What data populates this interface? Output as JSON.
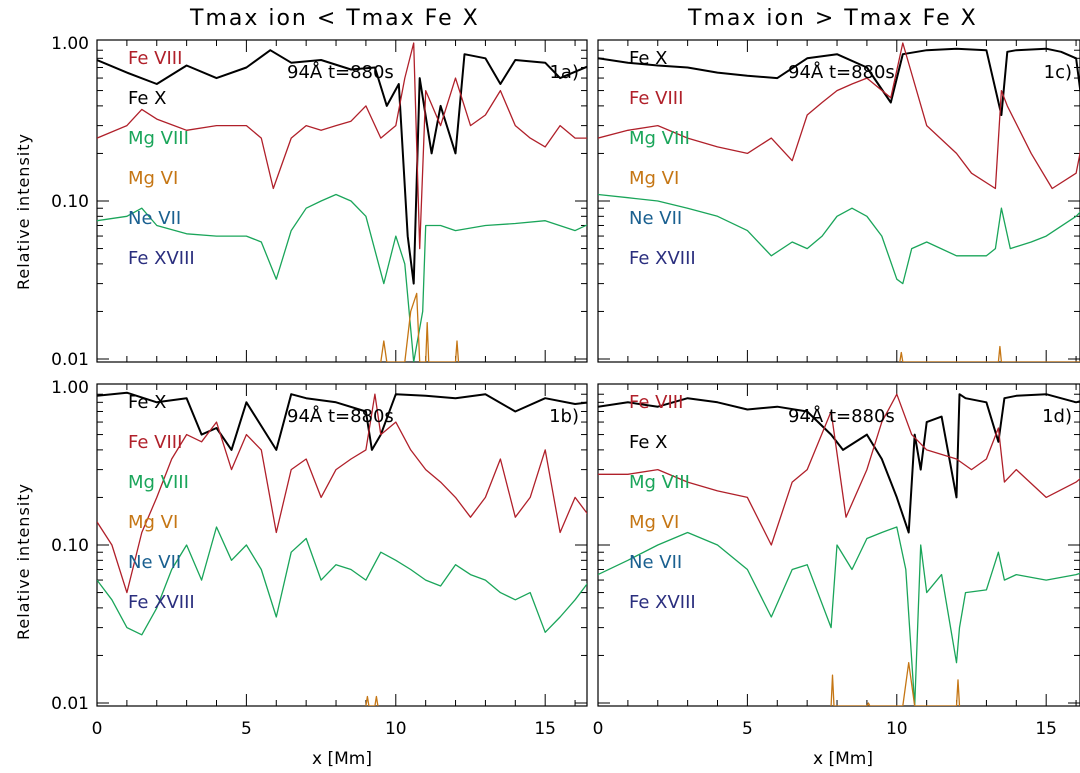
{
  "colors": {
    "Fe X": "#000000",
    "Fe VIII": "#b0202a",
    "Mg VIII": "#1aa55a",
    "Mg VI": "#c57614",
    "Ne VII": "#1a6090",
    "Fe XVIII": "#2a2e7e"
  },
  "column_titles": [
    "Tmax ion < Tmax Fe X",
    "Tmax ion > Tmax Fe X"
  ],
  "ylabel": "Relative intensity",
  "xlabel": "x [Mm]",
  "chart_data": [
    {
      "type": "line",
      "panel": "1a)",
      "annotation": "94Å t=880s",
      "legend": [
        "Fe VIII",
        "Fe X",
        "Mg VIII",
        "Mg VI",
        "Ne VII",
        "Fe XVIII"
      ],
      "xlim": [
        0,
        16.5
      ],
      "ylim": [
        0.01,
        1.0
      ],
      "yscale": "log",
      "xticks": [
        0,
        5,
        10,
        15
      ],
      "yticks": [
        "1.00",
        "0.10",
        "0.01"
      ],
      "series": [
        {
          "name": "Fe X",
          "x": [
            0,
            1,
            2,
            3,
            4,
            5,
            5.8,
            6.5,
            7.5,
            8.5,
            9.3,
            9.7,
            10.1,
            10.4,
            10.6,
            10.8,
            11.2,
            11.5,
            12,
            12.3,
            13,
            13.5,
            14,
            15,
            15.5,
            16.5
          ],
          "y": [
            0.78,
            0.65,
            0.55,
            0.72,
            0.6,
            0.7,
            0.9,
            0.75,
            0.78,
            0.68,
            0.7,
            0.4,
            0.55,
            0.06,
            0.03,
            0.6,
            0.2,
            0.4,
            0.2,
            0.85,
            0.8,
            0.55,
            0.78,
            0.75,
            0.6,
            0.72
          ]
        },
        {
          "name": "Fe VIII",
          "x": [
            0,
            1,
            1.5,
            2,
            3,
            4,
            5,
            5.5,
            5.9,
            6.5,
            7,
            7.5,
            8,
            8.5,
            9,
            9.5,
            10,
            10.3,
            10.6,
            10.8,
            11,
            11.5,
            12,
            12.5,
            13,
            13.5,
            14,
            14.5,
            15,
            15.5,
            16,
            16.5
          ],
          "y": [
            0.25,
            0.3,
            0.38,
            0.33,
            0.28,
            0.3,
            0.3,
            0.25,
            0.12,
            0.25,
            0.3,
            0.28,
            0.3,
            0.32,
            0.4,
            0.25,
            0.3,
            0.6,
            1.0,
            0.05,
            0.5,
            0.3,
            0.6,
            0.3,
            0.35,
            0.5,
            0.3,
            0.25,
            0.22,
            0.3,
            0.25,
            0.25
          ]
        },
        {
          "name": "Mg VIII",
          "x": [
            0,
            1,
            1.5,
            2,
            3,
            4,
            5,
            5.5,
            6,
            6.5,
            7,
            7.5,
            8,
            8.5,
            9,
            9.6,
            10,
            10.3,
            10.6,
            10.9,
            11,
            11.5,
            12,
            13,
            14,
            15,
            16,
            16.5
          ],
          "y": [
            0.075,
            0.08,
            0.09,
            0.07,
            0.062,
            0.06,
            0.06,
            0.055,
            0.032,
            0.065,
            0.09,
            0.1,
            0.11,
            0.1,
            0.08,
            0.03,
            0.06,
            0.04,
            0.005,
            0.02,
            0.07,
            0.07,
            0.065,
            0.07,
            0.072,
            0.075,
            0.065,
            0.072
          ]
        },
        {
          "name": "Mg VI",
          "x": [
            9.5,
            9.6,
            9.7,
            10.3,
            10.5,
            10.7,
            10.8,
            11.0,
            11.05,
            11.1,
            12.0,
            12.05,
            12.1
          ],
          "y": [
            0.005,
            0.013,
            0.005,
            0.005,
            0.02,
            0.026,
            0.005,
            0.005,
            0.017,
            0.005,
            0.005,
            0.013,
            0.005
          ]
        }
      ]
    },
    {
      "type": "line",
      "panel": "1c)",
      "annotation": "94Å t=880s",
      "legend": [
        "Fe X",
        "Fe VIII",
        "Mg VIII",
        "Mg VI",
        "Ne VII",
        "Fe XVIII"
      ],
      "xlim": [
        0,
        16.5
      ],
      "ylim": [
        0.01,
        1.0
      ],
      "yscale": "log",
      "xticks": [
        0,
        5,
        10,
        15
      ],
      "yticks": [],
      "series": [
        {
          "name": "Fe X",
          "x": [
            0,
            1,
            2,
            3,
            4,
            5,
            6,
            7,
            8,
            9,
            9.8,
            10.2,
            11,
            12,
            13,
            13.5,
            13.7,
            14,
            15,
            15.5,
            16,
            16.5
          ],
          "y": [
            0.8,
            0.75,
            0.72,
            0.7,
            0.65,
            0.62,
            0.6,
            0.8,
            0.85,
            0.7,
            0.42,
            0.85,
            0.9,
            0.92,
            0.9,
            0.35,
            0.88,
            0.9,
            0.92,
            0.88,
            0.8,
            0.15
          ]
        },
        {
          "name": "Fe VIII",
          "x": [
            0,
            1,
            2,
            3,
            4,
            5,
            5.8,
            6.5,
            7,
            7.5,
            8,
            8.5,
            9,
            9.8,
            10.2,
            11,
            12,
            12.5,
            13.3,
            13.5,
            13.7,
            14.5,
            15.2,
            16,
            16.5
          ],
          "y": [
            0.25,
            0.28,
            0.3,
            0.25,
            0.22,
            0.2,
            0.25,
            0.18,
            0.35,
            0.42,
            0.5,
            0.55,
            0.6,
            0.45,
            1.0,
            0.3,
            0.2,
            0.15,
            0.12,
            0.5,
            0.4,
            0.2,
            0.12,
            0.15,
            0.45
          ]
        },
        {
          "name": "Mg VIII",
          "x": [
            0,
            1,
            2,
            3,
            4,
            5,
            5.8,
            6.5,
            7,
            7.5,
            8,
            8.5,
            9,
            9.5,
            10,
            10.2,
            10.5,
            11,
            12,
            13,
            13.3,
            13.5,
            13.8,
            14.5,
            15,
            16,
            16.5
          ],
          "y": [
            0.11,
            0.105,
            0.1,
            0.09,
            0.08,
            0.065,
            0.045,
            0.055,
            0.05,
            0.06,
            0.08,
            0.09,
            0.08,
            0.06,
            0.032,
            0.03,
            0.05,
            0.055,
            0.045,
            0.045,
            0.05,
            0.09,
            0.05,
            0.055,
            0.06,
            0.08,
            0.1
          ]
        },
        {
          "name": "Mg VI",
          "x": [
            10.1,
            10.15,
            10.2,
            13.4,
            13.45,
            13.5,
            16.4,
            16.5
          ],
          "y": [
            0.005,
            0.011,
            0.005,
            0.005,
            0.012,
            0.005,
            0.005,
            0.02
          ]
        }
      ]
    },
    {
      "type": "line",
      "panel": "1b)",
      "annotation": "94Å t=880s",
      "legend": [
        "Fe X",
        "Fe VIII",
        "Mg VIII",
        "Mg VI",
        "Ne VII",
        "Fe XVIII"
      ],
      "xlim": [
        0,
        16.5
      ],
      "ylim": [
        0.01,
        1.0
      ],
      "yscale": "log",
      "xticks": [
        0,
        5,
        10,
        15
      ],
      "yticks": [
        "1.00",
        "0.10",
        "0.01"
      ],
      "series": [
        {
          "name": "Fe X",
          "x": [
            0,
            1,
            2,
            3,
            3.5,
            4,
            4.5,
            5,
            6,
            6.5,
            7,
            8,
            9,
            9.2,
            9.5,
            10,
            11,
            12,
            13,
            14,
            15,
            16,
            16.5
          ],
          "y": [
            0.88,
            0.92,
            0.8,
            0.85,
            0.5,
            0.55,
            0.4,
            0.8,
            0.4,
            0.9,
            0.85,
            0.8,
            0.7,
            0.4,
            0.5,
            0.9,
            0.88,
            0.85,
            0.9,
            0.7,
            0.85,
            0.78,
            0.8
          ]
        },
        {
          "name": "Fe VIII",
          "x": [
            0,
            0.5,
            1,
            1.5,
            2,
            2.5,
            3,
            3.5,
            4,
            4.5,
            5,
            5.5,
            6,
            6.5,
            7,
            7.5,
            8,
            8.5,
            9,
            9.3,
            9.5,
            10,
            10.5,
            11,
            11.5,
            12,
            12.5,
            13,
            13.5,
            14,
            14.5,
            15,
            15.5,
            16,
            16.5
          ],
          "y": [
            0.14,
            0.1,
            0.05,
            0.12,
            0.2,
            0.35,
            0.5,
            0.45,
            0.6,
            0.3,
            0.5,
            0.4,
            0.12,
            0.3,
            0.35,
            0.2,
            0.3,
            0.35,
            0.4,
            0.9,
            0.5,
            0.6,
            0.4,
            0.3,
            0.25,
            0.2,
            0.15,
            0.2,
            0.35,
            0.15,
            0.2,
            0.4,
            0.12,
            0.2,
            0.15
          ]
        },
        {
          "name": "Mg VIII",
          "x": [
            0,
            0.5,
            1,
            1.5,
            2,
            2.5,
            3,
            3.5,
            4,
            4.5,
            5,
            5.5,
            6,
            6.5,
            7,
            7.5,
            8,
            8.5,
            9,
            9.5,
            10,
            10.5,
            11,
            11.5,
            12,
            12.5,
            13,
            13.5,
            14,
            14.5,
            15,
            15.5,
            16,
            16.5
          ],
          "y": [
            0.06,
            0.045,
            0.03,
            0.027,
            0.04,
            0.07,
            0.1,
            0.06,
            0.13,
            0.08,
            0.1,
            0.07,
            0.035,
            0.09,
            0.11,
            0.06,
            0.075,
            0.07,
            0.06,
            0.09,
            0.08,
            0.07,
            0.06,
            0.055,
            0.075,
            0.065,
            0.06,
            0.05,
            0.045,
            0.05,
            0.028,
            0.035,
            0.045,
            0.06
          ]
        },
        {
          "name": "Mg VI",
          "x": [
            9.0,
            9.05,
            9.1,
            9.3,
            9.35,
            9.4
          ],
          "y": [
            0.005,
            0.011,
            0.005,
            0.005,
            0.011,
            0.005
          ]
        }
      ]
    },
    {
      "type": "line",
      "panel": "1d)",
      "annotation": "94Å t=880s",
      "legend": [
        "Fe VIII",
        "Fe X",
        "Mg VIII",
        "Mg VI",
        "Ne VII",
        "Fe XVIII"
      ],
      "xlim": [
        0,
        16.5
      ],
      "ylim": [
        0.01,
        1.0
      ],
      "yscale": "log",
      "xticks": [
        0,
        5,
        10,
        15
      ],
      "yticks": [],
      "series": [
        {
          "name": "Fe X",
          "x": [
            0,
            1,
            2,
            3,
            4,
            5,
            6,
            7,
            7.8,
            8.2,
            9,
            9.5,
            10,
            10.4,
            10.6,
            10.8,
            11,
            11.5,
            12,
            12.1,
            12.3,
            13,
            13.4,
            13.6,
            14,
            15,
            16,
            16.5
          ],
          "y": [
            0.75,
            0.8,
            0.75,
            0.85,
            0.8,
            0.72,
            0.75,
            0.7,
            0.5,
            0.4,
            0.5,
            0.35,
            0.2,
            0.12,
            0.5,
            0.3,
            0.6,
            0.65,
            0.2,
            0.9,
            0.85,
            0.8,
            0.45,
            0.85,
            0.88,
            0.9,
            0.8,
            0.85
          ]
        },
        {
          "name": "Fe VIII",
          "x": [
            0,
            1,
            2,
            3,
            4,
            5,
            5.8,
            6.5,
            7,
            7.8,
            8.3,
            9,
            9.5,
            10,
            10.5,
            11,
            12,
            12.5,
            13,
            13.4,
            13.6,
            14,
            15,
            16,
            16.5
          ],
          "y": [
            0.28,
            0.28,
            0.3,
            0.25,
            0.22,
            0.2,
            0.1,
            0.25,
            0.3,
            0.7,
            0.15,
            0.3,
            0.6,
            0.9,
            0.5,
            0.4,
            0.35,
            0.3,
            0.35,
            0.55,
            0.25,
            0.3,
            0.2,
            0.25,
            0.3
          ]
        },
        {
          "name": "Mg VIII",
          "x": [
            0,
            1,
            2,
            3,
            4,
            5,
            5.8,
            6.5,
            7,
            7.8,
            8,
            8.5,
            9,
            9.5,
            10,
            10.3,
            10.6,
            10.8,
            11,
            11.5,
            12,
            12.1,
            12.3,
            13,
            13.4,
            13.6,
            14,
            15,
            16,
            16.5
          ],
          "y": [
            0.065,
            0.08,
            0.1,
            0.12,
            0.1,
            0.07,
            0.035,
            0.07,
            0.075,
            0.03,
            0.1,
            0.07,
            0.11,
            0.12,
            0.13,
            0.07,
            0.003,
            0.1,
            0.05,
            0.065,
            0.018,
            0.03,
            0.05,
            0.052,
            0.09,
            0.06,
            0.065,
            0.06,
            0.065,
            0.07
          ]
        },
        {
          "name": "Mg VI",
          "x": [
            7.8,
            7.85,
            7.9,
            9.0,
            9.05,
            9.1,
            10.2,
            10.4,
            10.6,
            12.0,
            12.05,
            12.1
          ],
          "y": [
            0.005,
            0.015,
            0.005,
            0.005,
            0.01,
            0.005,
            0.005,
            0.018,
            0.005,
            0.005,
            0.014,
            0.005
          ]
        }
      ]
    }
  ]
}
